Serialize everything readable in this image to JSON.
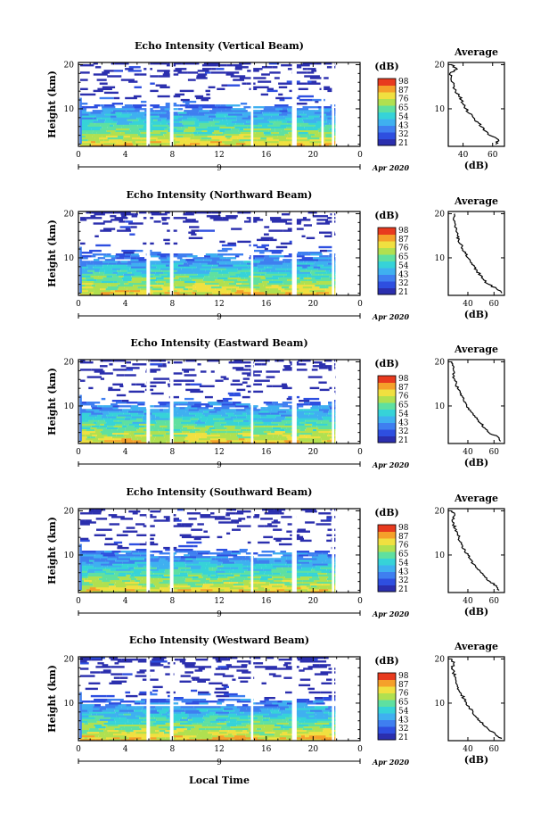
{
  "common": {
    "y_label": "Height (km)",
    "x_label": "Local Time",
    "date_label": "Apr 2020",
    "date_day": "9",
    "cb_unit": "(dB)",
    "avg_title": "Average",
    "avg_xlabel": "(dB)"
  },
  "colors": {
    "colormap": [
      "#2b2fae",
      "#2e4fe0",
      "#3f7ff0",
      "#3fb0f0",
      "#36d3d8",
      "#5fe0a0",
      "#b0e050",
      "#f0e040",
      "#f5a02a",
      "#e83a1e"
    ]
  },
  "chart_data": [
    {
      "type": "heatmap",
      "title": "Echo Intensity (Vertical Beam)",
      "x_ticks": [
        "0",
        "4",
        "8",
        "12",
        "16",
        "20",
        "0"
      ],
      "y_ticks": [
        "20",
        "10"
      ],
      "xlim": [
        0,
        24
      ],
      "ylim": [
        1.5,
        20.5
      ],
      "colorbar_ticks": [
        "98",
        "87",
        "76",
        "65",
        "54",
        "43",
        "32",
        "21"
      ],
      "clim": [
        21,
        98
      ],
      "gaps_hours": [
        [
          5.8,
          6.1
        ],
        [
          7.8,
          8.1
        ],
        [
          14.7,
          14.9
        ],
        [
          18.2,
          18.6
        ],
        [
          20.7,
          20.9
        ],
        [
          21.6,
          21.8
        ]
      ],
      "avg_profile": {
        "xlim": [
          30,
          68
        ],
        "ylim": [
          1.5,
          20.5
        ],
        "x_ticks": [
          "40",
          "60"
        ],
        "y_ticks": [
          "20",
          "10"
        ],
        "height_km": [
          2,
          3,
          4,
          5,
          6,
          7,
          8,
          9,
          10,
          11,
          12,
          13,
          14,
          15,
          16,
          17,
          18,
          19,
          20
        ],
        "db": [
          62,
          64,
          58,
          55,
          52,
          50,
          47,
          44,
          42,
          40,
          39,
          37,
          35,
          34,
          33,
          32,
          31,
          36,
          32
        ]
      }
    },
    {
      "type": "heatmap",
      "title": "Echo Intensity (Northward Beam)",
      "x_ticks": [
        "0",
        "4",
        "8",
        "12",
        "16",
        "20",
        "0"
      ],
      "y_ticks": [
        "20",
        "10"
      ],
      "xlim": [
        0,
        24
      ],
      "ylim": [
        1.5,
        20.5
      ],
      "colorbar_ticks": [
        "98",
        "87",
        "76",
        "65",
        "54",
        "43",
        "32",
        "21"
      ],
      "clim": [
        21,
        98
      ],
      "gaps_hours": [
        [
          5.8,
          6.1
        ],
        [
          7.8,
          8.1
        ],
        [
          14.7,
          14.9
        ],
        [
          18.2,
          18.6
        ],
        [
          21.6,
          21.8
        ]
      ],
      "avg_profile": {
        "xlim": [
          25,
          68
        ],
        "ylim": [
          1.5,
          20.5
        ],
        "x_ticks": [
          "40",
          "60"
        ],
        "y_ticks": [
          "20",
          "10"
        ],
        "height_km": [
          2,
          3,
          4,
          5,
          6,
          7,
          8,
          9,
          10,
          11,
          12,
          13,
          14,
          15,
          16,
          17,
          18,
          19,
          20
        ],
        "db": [
          66,
          62,
          56,
          52,
          50,
          47,
          45,
          42,
          40,
          38,
          36,
          35,
          33,
          32,
          31,
          30,
          30,
          29,
          30
        ]
      }
    },
    {
      "type": "heatmap",
      "title": "Echo Intensity (Eastward Beam)",
      "x_ticks": [
        "0",
        "4",
        "8",
        "12",
        "16",
        "20",
        "0"
      ],
      "y_ticks": [
        "20",
        "10"
      ],
      "xlim": [
        0,
        24
      ],
      "ylim": [
        1.5,
        20.5
      ],
      "colorbar_ticks": [
        "98",
        "87",
        "76",
        "65",
        "54",
        "43",
        "32",
        "21"
      ],
      "clim": [
        21,
        98
      ],
      "gaps_hours": [
        [
          5.8,
          6.1
        ],
        [
          7.8,
          8.1
        ],
        [
          14.7,
          14.9
        ],
        [
          18.2,
          18.6
        ],
        [
          21.6,
          21.8
        ]
      ],
      "avg_profile": {
        "xlim": [
          25,
          68
        ],
        "ylim": [
          1.5,
          20.5
        ],
        "x_ticks": [
          "40",
          "60"
        ],
        "y_ticks": [
          "20",
          "10"
        ],
        "height_km": [
          2,
          3,
          4,
          5,
          6,
          7,
          8,
          9,
          10,
          11,
          12,
          13,
          14,
          15,
          16,
          17,
          18,
          19,
          20
        ],
        "db": [
          65,
          63,
          56,
          53,
          50,
          47,
          44,
          42,
          39,
          37,
          36,
          34,
          32,
          31,
          30,
          29,
          29,
          29,
          28
        ]
      }
    },
    {
      "type": "heatmap",
      "title": "Echo Intensity (Southward Beam)",
      "x_ticks": [
        "0",
        "4",
        "8",
        "12",
        "16",
        "20",
        "0"
      ],
      "y_ticks": [
        "20",
        "10"
      ],
      "xlim": [
        0,
        24
      ],
      "ylim": [
        1.5,
        20.5
      ],
      "colorbar_ticks": [
        "98",
        "87",
        "76",
        "65",
        "54",
        "43",
        "32",
        "21"
      ],
      "clim": [
        21,
        98
      ],
      "gaps_hours": [
        [
          5.8,
          6.1
        ],
        [
          7.8,
          8.1
        ],
        [
          14.7,
          14.9
        ],
        [
          18.2,
          18.6
        ],
        [
          21.6,
          21.8
        ]
      ],
      "avg_profile": {
        "xlim": [
          25,
          68
        ],
        "ylim": [
          1.5,
          20.5
        ],
        "x_ticks": [
          "40",
          "60"
        ],
        "y_ticks": [
          "20",
          "10"
        ],
        "height_km": [
          2,
          3,
          4,
          5,
          6,
          7,
          8,
          9,
          10,
          11,
          12,
          13,
          14,
          15,
          16,
          17,
          18,
          19,
          20
        ],
        "db": [
          64,
          62,
          57,
          53,
          50,
          47,
          44,
          42,
          40,
          38,
          36,
          34,
          33,
          32,
          30,
          29,
          28,
          30,
          28
        ]
      }
    },
    {
      "type": "heatmap",
      "title": "Echo Intensity (Westward Beam)",
      "x_ticks": [
        "0",
        "4",
        "8",
        "12",
        "16",
        "20",
        "0"
      ],
      "y_ticks": [
        "20",
        "10"
      ],
      "xlim": [
        0,
        24
      ],
      "ylim": [
        1.5,
        20.5
      ],
      "colorbar_ticks": [
        "98",
        "87",
        "76",
        "65",
        "54",
        "43",
        "32",
        "21"
      ],
      "clim": [
        21,
        98
      ],
      "gaps_hours": [
        [
          5.8,
          6.1
        ],
        [
          7.8,
          8.1
        ],
        [
          14.7,
          14.9
        ],
        [
          18.2,
          18.6
        ],
        [
          21.6,
          21.8
        ]
      ],
      "avg_profile": {
        "xlim": [
          25,
          68
        ],
        "ylim": [
          1.5,
          20.5
        ],
        "x_ticks": [
          "40",
          "60"
        ],
        "y_ticks": [
          "20",
          "10"
        ],
        "height_km": [
          2,
          3,
          4,
          5,
          6,
          7,
          8,
          9,
          10,
          11,
          12,
          13,
          14,
          15,
          16,
          17,
          18,
          19,
          20
        ],
        "db": [
          66,
          61,
          56,
          52,
          49,
          46,
          44,
          41,
          39,
          37,
          35,
          33,
          32,
          31,
          30,
          29,
          28,
          29,
          28
        ]
      }
    }
  ]
}
